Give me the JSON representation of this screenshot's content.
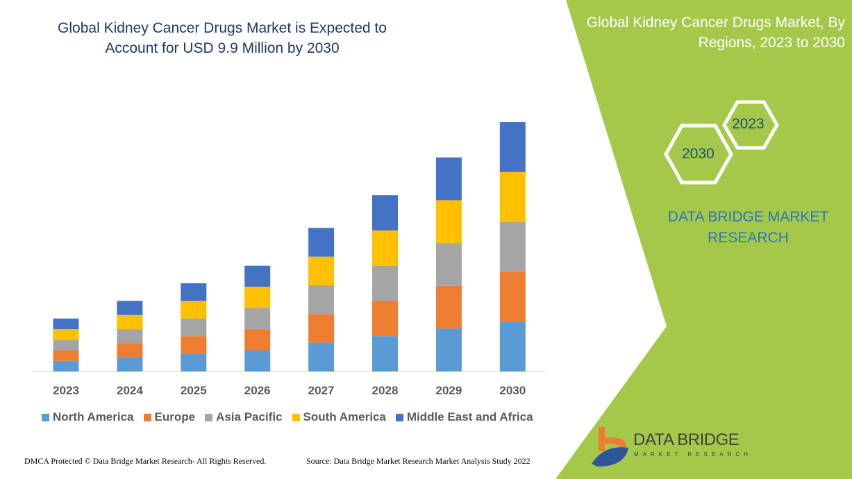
{
  "chart_data": {
    "type": "bar",
    "stacked": true,
    "title": "Global Kidney Cancer Drugs Market is Expected to Account for USD 9.9 Million by 2030",
    "categories": [
      "2023",
      "2024",
      "2025",
      "2026",
      "2027",
      "2028",
      "2029",
      "2030"
    ],
    "series": [
      {
        "name": "North America",
        "color": "#5b9bd5",
        "values": [
          0.42,
          0.56,
          0.7,
          0.84,
          1.14,
          1.4,
          1.7,
          1.98
        ]
      },
      {
        "name": "Europe",
        "color": "#ed7d31",
        "values": [
          0.42,
          0.56,
          0.7,
          0.84,
          1.14,
          1.4,
          1.7,
          1.98
        ]
      },
      {
        "name": "Asia Pacific",
        "color": "#a5a5a5",
        "values": [
          0.42,
          0.56,
          0.7,
          0.84,
          1.14,
          1.4,
          1.7,
          1.98
        ]
      },
      {
        "name": "South America",
        "color": "#ffc000",
        "values": [
          0.42,
          0.56,
          0.7,
          0.84,
          1.14,
          1.4,
          1.7,
          1.98
        ]
      },
      {
        "name": "Middle East and Africa",
        "color": "#4472c4",
        "values": [
          0.42,
          0.56,
          0.7,
          0.84,
          1.14,
          1.4,
          1.7,
          1.98
        ]
      }
    ],
    "ylim": [
      0,
      9.9
    ],
    "grid": false,
    "legend": "bottom"
  },
  "side": {
    "title": "Global Kidney Cancer Drugs Market, By Regions, 2023 to 2030",
    "hex_a": "2023",
    "hex_b": "2030",
    "brand": "DATA BRIDGE MARKET RESEARCH"
  },
  "logo": {
    "name": "DATA BRIDGE",
    "tagline": "MARKET RESEARCH"
  },
  "footer": {
    "left": "DMCA Protected © Data Bridge Market Research- All Rights Reserved.",
    "right": "Source: Data Bridge Market Research Market Analysis Study 2022"
  },
  "colors": {
    "green": "#a4c94a",
    "title": "#1f3864"
  }
}
